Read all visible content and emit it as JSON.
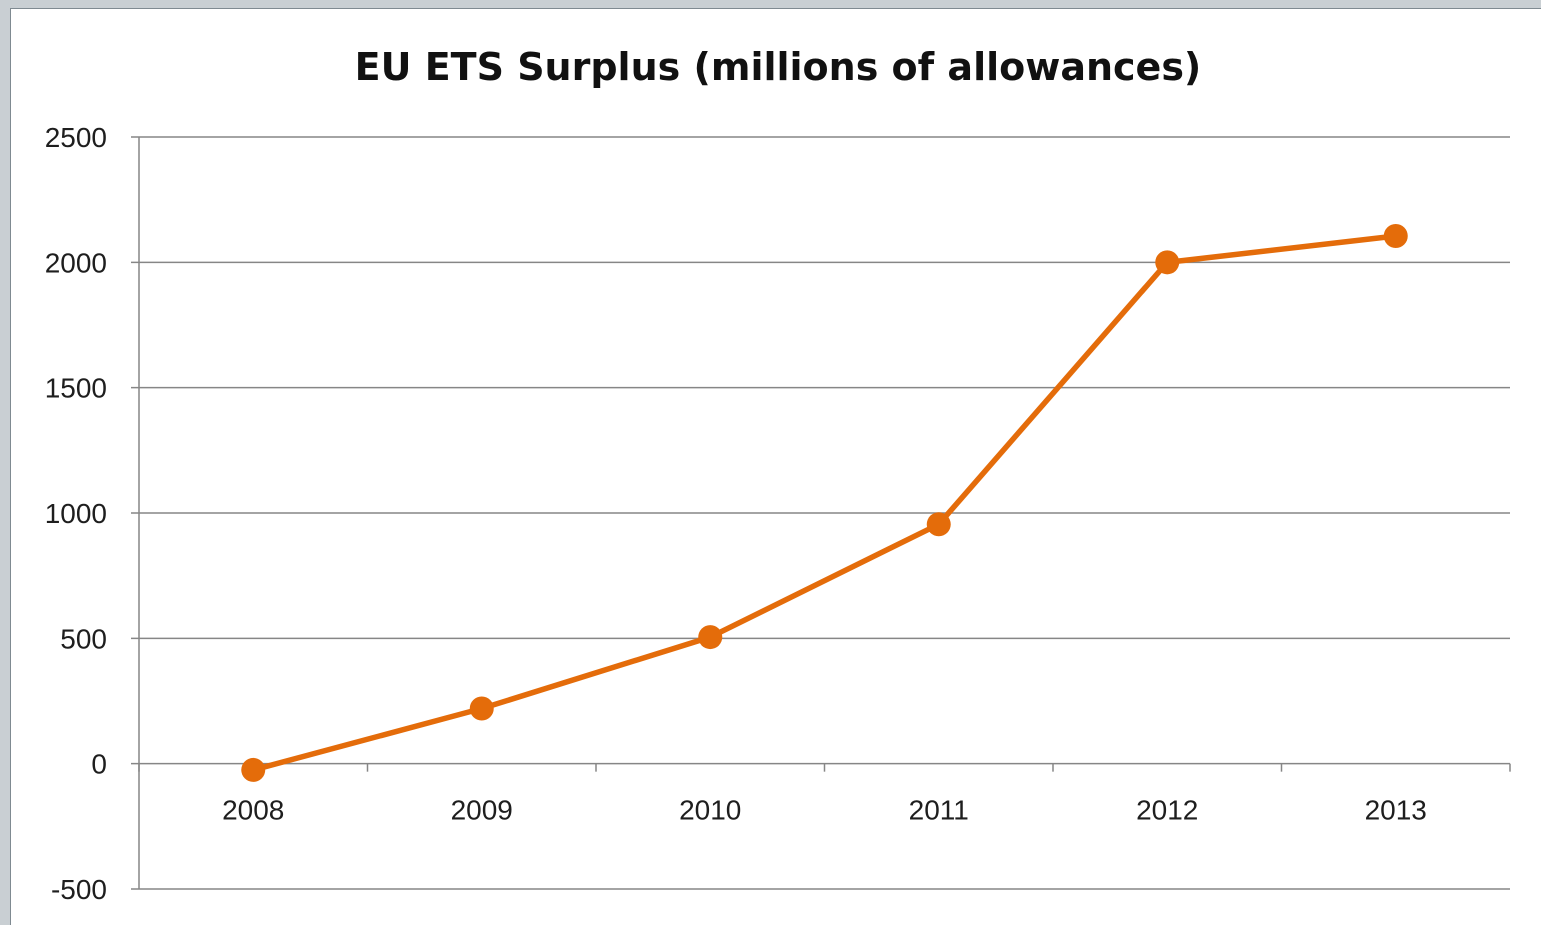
{
  "chart_data": {
    "type": "line",
    "title": "EU ETS Surplus (millions of allowances)",
    "xlabel": "",
    "ylabel": "",
    "categories": [
      "2008",
      "2009",
      "2010",
      "2011",
      "2012",
      "2013"
    ],
    "series": [
      {
        "values": [
          -25,
          220,
          505,
          955,
          2000,
          2105
        ],
        "color": "#e46c0a"
      }
    ],
    "ylim": [
      -500,
      2500
    ],
    "yticks": [
      2500,
      2000,
      1500,
      1000,
      500,
      0,
      -500
    ],
    "grid": true,
    "legend": "none",
    "colors": {
      "line": "#e46c0a",
      "grid": "#868686",
      "background": "#ffffff"
    }
  }
}
